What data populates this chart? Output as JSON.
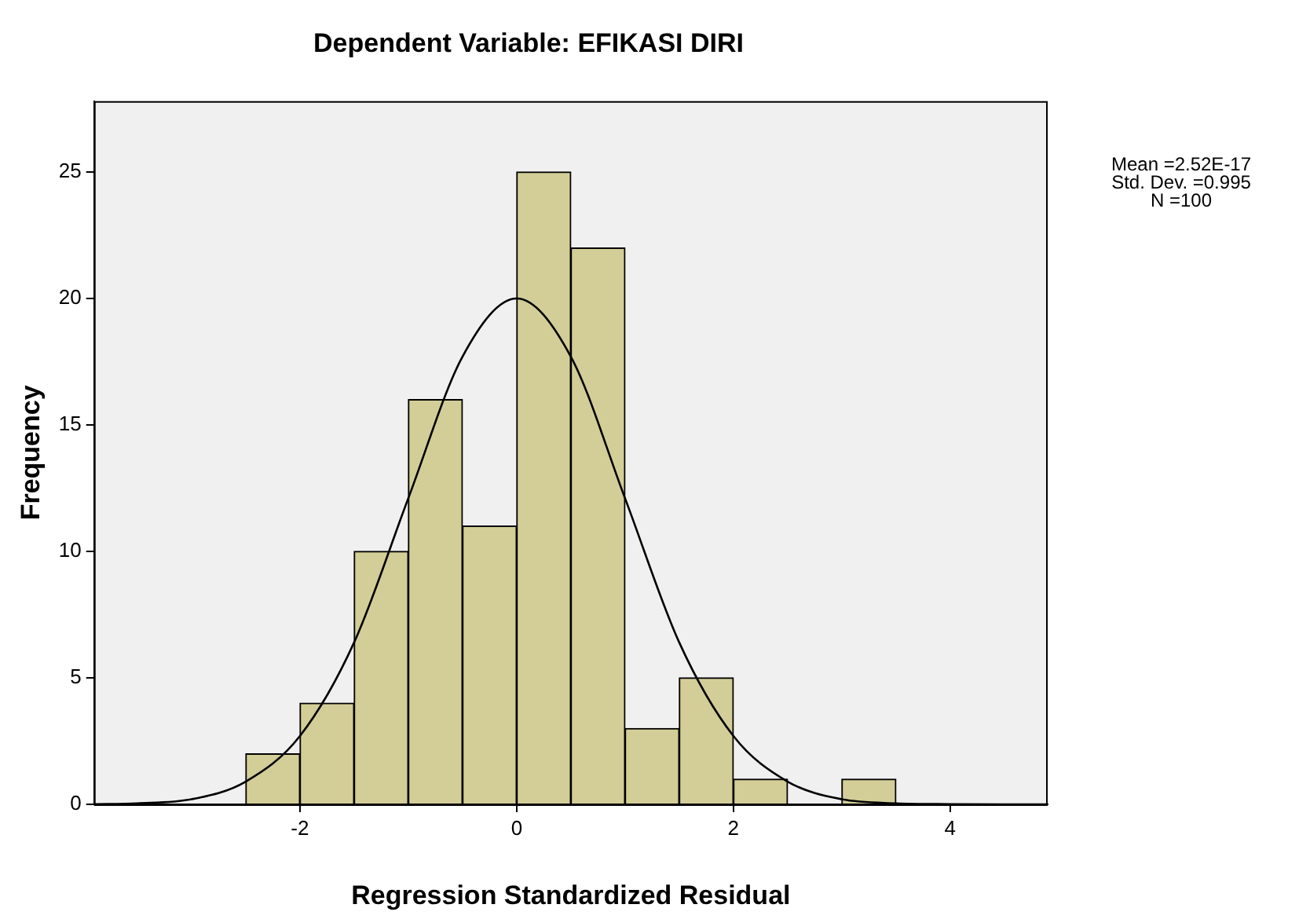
{
  "chart_data": {
    "type": "histogram",
    "title": "Dependent Variable: EFIKASI DIRI",
    "xlabel": "Regression Standardized Residual",
    "ylabel": "Frequency",
    "bins": [
      -2.5,
      -2,
      -1.5,
      -1,
      -0.5,
      0,
      0.5,
      1,
      1.5,
      2,
      2.5,
      3,
      3.5
    ],
    "values": [
      2,
      4,
      10,
      16,
      11,
      25,
      22,
      3,
      5,
      1,
      0,
      1
    ],
    "color": "#d3ce97",
    "series": [
      {
        "type": "line",
        "color": "#000000",
        "x": [
          -3.9,
          -3.5,
          -3,
          -2.5,
          -2,
          -1.5,
          -1,
          -0.5,
          0,
          0.5,
          1,
          1.5,
          2,
          2.5,
          3,
          3.5,
          4,
          4.5,
          4.9
        ],
        "values": [
          0.01,
          0.04,
          0.2,
          0.9,
          2.7,
          6.4,
          12.1,
          17.7,
          20.0,
          17.7,
          12.1,
          6.4,
          2.7,
          0.9,
          0.2,
          0.04,
          0.01,
          0,
          0
        ]
      }
    ],
    "xlim": [
      -3.9,
      4.9
    ],
    "xticks": [
      -2,
      0,
      2,
      4
    ],
    "ylim": [
      0,
      27.8
    ],
    "yticks": [
      0,
      5,
      10,
      15,
      20,
      25
    ],
    "grid": false,
    "legend": false,
    "annotations": [
      "Mean =2.52E-17",
      "Std. Dev. =0.995",
      "N =100"
    ]
  }
}
